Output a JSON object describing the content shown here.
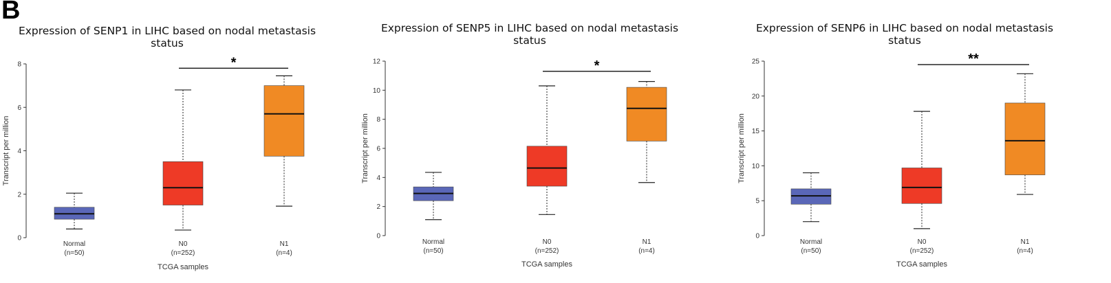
{
  "panel_label": "B",
  "colors": {
    "Normal": "#5a67b8",
    "N0": "#ee3a26",
    "N1": "#f08a24"
  },
  "chart_data": [
    {
      "type": "box",
      "title_lines": [
        "Expression of SENP1 in LIHC based on nodal metastasis",
        "status"
      ],
      "ylabel": "Transcript per million",
      "xlabel": "TCGA samples",
      "ylim": [
        0,
        8
      ],
      "yticks": [
        0,
        2,
        4,
        6,
        8
      ],
      "groups": [
        {
          "name": "Normal",
          "n_label": "(n=50)",
          "min": 0.4,
          "q1": 0.85,
          "median": 1.1,
          "q3": 1.4,
          "max": 2.05
        },
        {
          "name": "N0",
          "n_label": "(n=252)",
          "min": 0.35,
          "q1": 1.5,
          "median": 2.3,
          "q3": 3.5,
          "max": 6.8
        },
        {
          "name": "N1",
          "n_label": "(n=4)",
          "min": 1.45,
          "q1": 3.75,
          "median": 5.7,
          "q3": 7.0,
          "max": 7.45
        }
      ],
      "significance": {
        "from": "N0",
        "to": "N1",
        "label": "*",
        "y": 7.8
      }
    },
    {
      "type": "box",
      "title_lines": [
        "Expression of SENP5 in LIHC based on nodal metastasis",
        "status"
      ],
      "ylabel": "Transcript per million",
      "xlabel": "TCGA samples",
      "ylim": [
        0,
        12
      ],
      "yticks": [
        0,
        2,
        4,
        6,
        8,
        10,
        12
      ],
      "groups": [
        {
          "name": "Normal",
          "n_label": "(n=50)",
          "min": 1.1,
          "q1": 2.4,
          "median": 2.9,
          "q3": 3.35,
          "max": 4.35
        },
        {
          "name": "N0",
          "n_label": "(n=252)",
          "min": 1.45,
          "q1": 3.4,
          "median": 4.65,
          "q3": 6.15,
          "max": 10.3
        },
        {
          "name": "N1",
          "n_label": "(n=4)",
          "min": 3.65,
          "q1": 6.5,
          "median": 8.75,
          "q3": 10.2,
          "max": 10.6
        }
      ],
      "significance": {
        "from": "N0",
        "to": "N1",
        "label": "*",
        "y": 11.3
      }
    },
    {
      "type": "box",
      "title_lines": [
        "Expression of SENP6 in LIHC based on nodal metastasis",
        "status"
      ],
      "ylabel": "Transcript per million",
      "xlabel": "TCGA samples",
      "ylim": [
        0,
        25
      ],
      "yticks": [
        0,
        5,
        10,
        15,
        20,
        25
      ],
      "groups": [
        {
          "name": "Normal",
          "n_label": "(n=50)",
          "min": 2.0,
          "q1": 4.5,
          "median": 5.7,
          "q3": 6.7,
          "max": 9.0
        },
        {
          "name": "N0",
          "n_label": "(n=252)",
          "min": 1.0,
          "q1": 4.6,
          "median": 6.9,
          "q3": 9.7,
          "max": 17.8
        },
        {
          "name": "N1",
          "n_label": "(n=4)",
          "min": 5.9,
          "q1": 8.7,
          "median": 13.6,
          "q3": 19.0,
          "max": 23.2
        }
      ],
      "significance": {
        "from": "N0",
        "to": "N1",
        "label": "**",
        "y": 24.5
      }
    }
  ]
}
